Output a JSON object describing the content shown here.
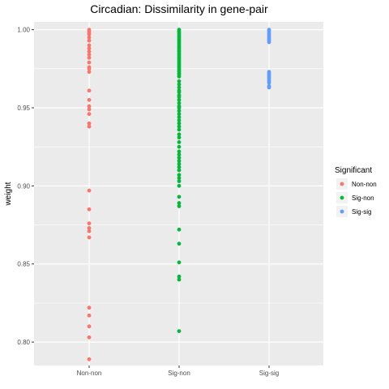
{
  "chart_data": {
    "type": "scatter",
    "title": "Circadian: Dissimilarity in gene-pair",
    "xlabel": "",
    "ylabel": "weight",
    "categories": [
      "Non-non",
      "Sig-non",
      "Sig-sig"
    ],
    "ylim": [
      0.785,
      1.005
    ],
    "yticks": [
      0.8,
      0.85,
      0.9,
      0.95,
      1.0
    ],
    "ytick_labels": [
      "0.80",
      "0.85",
      "0.90",
      "0.95",
      "1.00"
    ],
    "grid": true,
    "legend": {
      "title": "Significant",
      "position": "right",
      "entries": [
        "Non-non",
        "Sig-non",
        "Sig-sig"
      ]
    },
    "colors": {
      "Non-non": "#F8766D",
      "Sig-non": "#00BA38",
      "Sig-sig": "#619CFF",
      "panel": "#EBEBEB",
      "grid": "#FFFFFF"
    },
    "series": [
      {
        "name": "Non-non",
        "category": "Non-non",
        "values": [
          1.0,
          0.999,
          0.998,
          0.997,
          0.995,
          0.993,
          0.99,
          0.988,
          0.986,
          0.984,
          0.982,
          0.979,
          0.976,
          0.975,
          0.973,
          0.961,
          0.955,
          0.951,
          0.949,
          0.946,
          0.94,
          0.938,
          0.897,
          0.885,
          0.876,
          0.873,
          0.871,
          0.867,
          0.822,
          0.817,
          0.81,
          0.803,
          0.789
        ]
      },
      {
        "name": "Sig-non",
        "category": "Sig-non",
        "values": [
          1.0,
          0.999,
          0.998,
          0.997,
          0.996,
          0.995,
          0.994,
          0.993,
          0.992,
          0.991,
          0.99,
          0.989,
          0.988,
          0.987,
          0.986,
          0.985,
          0.984,
          0.983,
          0.982,
          0.981,
          0.98,
          0.979,
          0.978,
          0.977,
          0.976,
          0.975,
          0.974,
          0.973,
          0.972,
          0.971,
          0.97,
          0.967,
          0.965,
          0.963,
          0.961,
          0.96,
          0.958,
          0.957,
          0.955,
          0.953,
          0.951,
          0.95,
          0.948,
          0.946,
          0.944,
          0.942,
          0.94,
          0.938,
          0.936,
          0.933,
          0.931,
          0.928,
          0.925,
          0.922,
          0.92,
          0.918,
          0.916,
          0.914,
          0.912,
          0.91,
          0.907,
          0.905,
          0.903,
          0.9,
          0.893,
          0.889,
          0.887,
          0.872,
          0.863,
          0.851,
          0.842,
          0.84,
          0.807
        ]
      },
      {
        "name": "Sig-sig",
        "category": "Sig-sig",
        "values": [
          1.0,
          0.999,
          0.998,
          0.997,
          0.996,
          0.995,
          0.994,
          0.993,
          0.992,
          0.973,
          0.972,
          0.971,
          0.97,
          0.969,
          0.968,
          0.967,
          0.966,
          0.964,
          0.963
        ]
      }
    ]
  }
}
